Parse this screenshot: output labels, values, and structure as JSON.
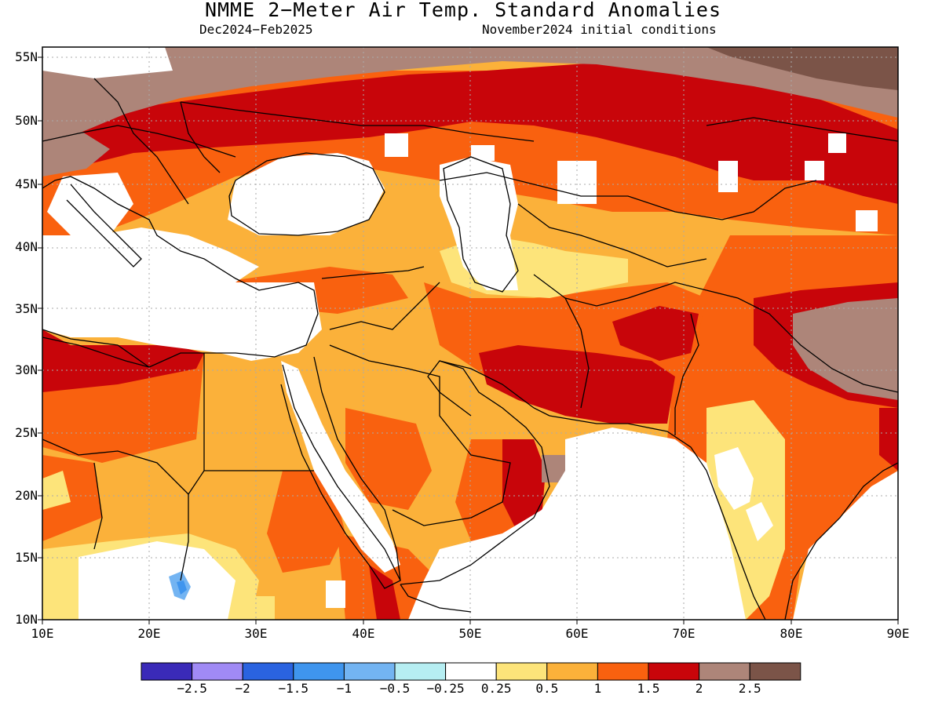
{
  "title": "NMME 2−Meter Air Temp. Standard Anomalies",
  "period": "Dec2024−Feb2025",
  "init": "November2024 initial conditions",
  "lat_labels": [
    "55N",
    "50N",
    "45N",
    "40N",
    "35N",
    "30N",
    "25N",
    "20N",
    "15N",
    "10N"
  ],
  "lon_labels": [
    "10E",
    "20E",
    "30E",
    "40E",
    "50E",
    "60E",
    "70E",
    "80E",
    "90E"
  ],
  "colorbar": {
    "colors": [
      "#3a2ab8",
      "#a08af5",
      "#2a63e0",
      "#3f95ee",
      "#73b4f2",
      "#b6eef2",
      "#ffffff",
      "#fde47a",
      "#fbb13a",
      "#f9610f",
      "#c8050a",
      "#ad8579",
      "#7b5448"
    ],
    "labels": [
      "−2.5",
      "−2",
      "−1.5",
      "−1",
      "−0.5",
      "−0.25",
      "0.25",
      "0.5",
      "1",
      "1.5",
      "2",
      "2.5"
    ]
  },
  "palette": {
    "c00": "#ffffff",
    "c05": "#fde47a",
    "c10": "#fbb13a",
    "c15": "#f9610f",
    "c20": "#c8050a",
    "c25": "#ad8579",
    "c30": "#7b5448",
    "cneg": "#73b4f2"
  }
}
